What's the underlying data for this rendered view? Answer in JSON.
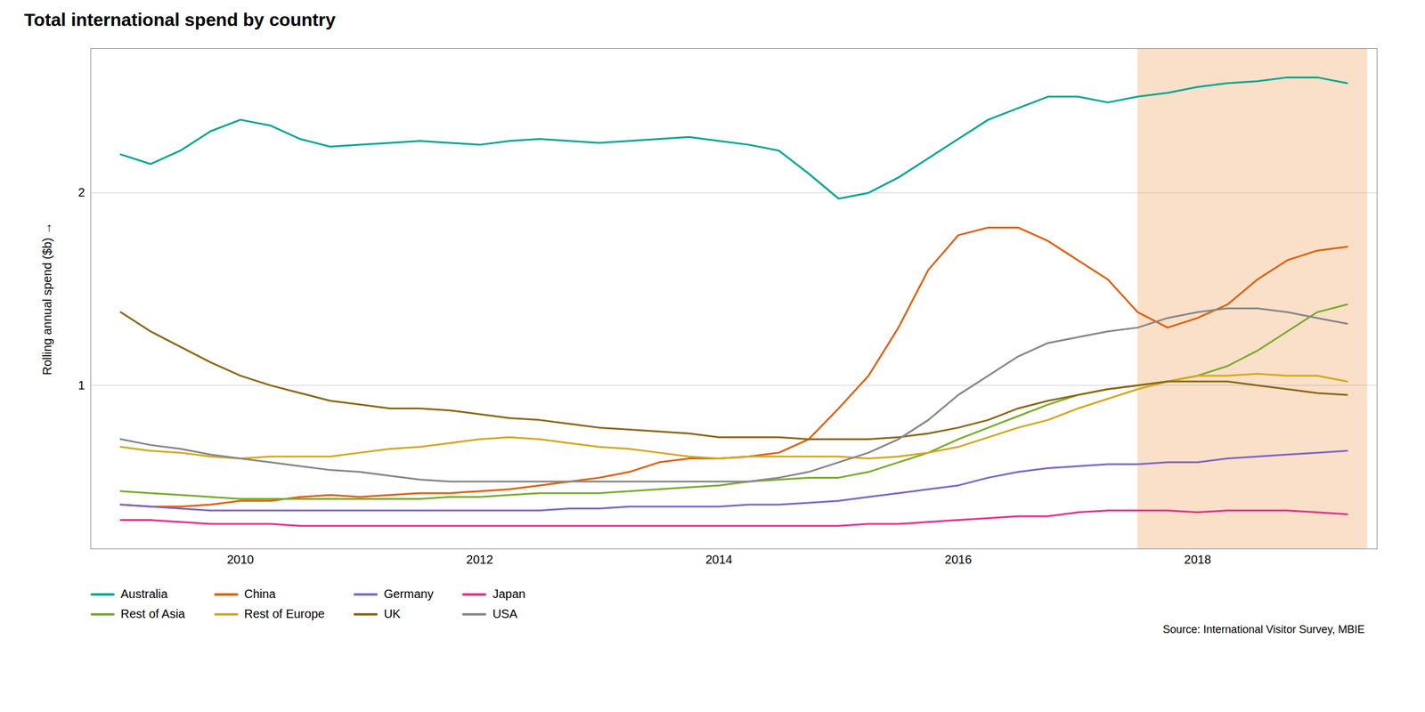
{
  "chart_data": {
    "type": "line",
    "title": "Total international spend by country",
    "ylabel": "Rolling annual spend ($b)",
    "annotations": [
      "Source: International Visitor Survey, MBIE"
    ],
    "highlight_span": [
      2017.5,
      2019.42
    ],
    "highlight_color": "#FAE0C8",
    "xlim": [
      2008.75,
      2019.5
    ],
    "ylim": [
      0.15,
      2.75
    ],
    "xticks": [
      2010,
      2012,
      2014,
      2016,
      2018
    ],
    "yticks": [
      1,
      2
    ],
    "grid": true,
    "legend": "bottom",
    "x": [
      2009.0,
      2009.25,
      2009.5,
      2009.75,
      2010.0,
      2010.25,
      2010.5,
      2010.75,
      2011.0,
      2011.25,
      2011.5,
      2011.75,
      2012.0,
      2012.25,
      2012.5,
      2012.75,
      2013.0,
      2013.25,
      2013.5,
      2013.75,
      2014.0,
      2014.25,
      2014.5,
      2014.75,
      2015.0,
      2015.25,
      2015.5,
      2015.75,
      2016.0,
      2016.25,
      2016.5,
      2016.75,
      2017.0,
      2017.25,
      2017.5,
      2017.75,
      2018.0,
      2018.25,
      2018.5,
      2018.75,
      2019.0,
      2019.25
    ],
    "series": [
      {
        "name": "Australia",
        "color": "#00A693",
        "values": [
          2.2,
          2.15,
          2.22,
          2.32,
          2.38,
          2.35,
          2.28,
          2.24,
          2.25,
          2.26,
          2.27,
          2.26,
          2.25,
          2.27,
          2.28,
          2.27,
          2.26,
          2.27,
          2.28,
          2.29,
          2.27,
          2.25,
          2.22,
          2.1,
          1.97,
          2.0,
          2.08,
          2.18,
          2.28,
          2.38,
          2.44,
          2.5,
          2.5,
          2.47,
          2.5,
          2.52,
          2.55,
          2.57,
          2.58,
          2.6,
          2.6,
          2.57
        ]
      },
      {
        "name": "China",
        "color": "#E06010",
        "values": [
          0.38,
          0.37,
          0.37,
          0.38,
          0.4,
          0.4,
          0.42,
          0.43,
          0.42,
          0.43,
          0.44,
          0.44,
          0.45,
          0.46,
          0.48,
          0.5,
          0.52,
          0.55,
          0.6,
          0.62,
          0.62,
          0.63,
          0.65,
          0.72,
          0.88,
          1.05,
          1.3,
          1.6,
          1.78,
          1.82,
          1.82,
          1.75,
          1.65,
          1.55,
          1.38,
          1.3,
          1.35,
          1.42,
          1.55,
          1.65,
          1.7,
          1.72
        ]
      },
      {
        "name": "Germany",
        "color": "#7B68C8",
        "values": [
          0.38,
          0.37,
          0.36,
          0.35,
          0.35,
          0.35,
          0.35,
          0.35,
          0.35,
          0.35,
          0.35,
          0.35,
          0.35,
          0.35,
          0.35,
          0.36,
          0.36,
          0.37,
          0.37,
          0.37,
          0.37,
          0.38,
          0.38,
          0.39,
          0.4,
          0.42,
          0.44,
          0.46,
          0.48,
          0.52,
          0.55,
          0.57,
          0.58,
          0.59,
          0.59,
          0.6,
          0.6,
          0.62,
          0.63,
          0.64,
          0.65,
          0.66
        ]
      },
      {
        "name": "Japan",
        "color": "#E8308A",
        "values": [
          0.3,
          0.3,
          0.29,
          0.28,
          0.28,
          0.28,
          0.27,
          0.27,
          0.27,
          0.27,
          0.27,
          0.27,
          0.27,
          0.27,
          0.27,
          0.27,
          0.27,
          0.27,
          0.27,
          0.27,
          0.27,
          0.27,
          0.27,
          0.27,
          0.27,
          0.28,
          0.28,
          0.29,
          0.3,
          0.31,
          0.32,
          0.32,
          0.34,
          0.35,
          0.35,
          0.35,
          0.34,
          0.35,
          0.35,
          0.35,
          0.34,
          0.33
        ]
      },
      {
        "name": "Rest of Asia",
        "color": "#79AC2C",
        "values": [
          0.45,
          0.44,
          0.43,
          0.42,
          0.41,
          0.41,
          0.41,
          0.41,
          0.41,
          0.41,
          0.41,
          0.42,
          0.42,
          0.43,
          0.44,
          0.44,
          0.44,
          0.45,
          0.46,
          0.47,
          0.48,
          0.5,
          0.51,
          0.52,
          0.52,
          0.55,
          0.6,
          0.65,
          0.72,
          0.78,
          0.84,
          0.9,
          0.95,
          0.98,
          1.0,
          1.02,
          1.05,
          1.1,
          1.18,
          1.28,
          1.38,
          1.42
        ]
      },
      {
        "name": "Rest of Europe",
        "color": "#D4A820",
        "values": [
          0.68,
          0.66,
          0.65,
          0.63,
          0.62,
          0.63,
          0.63,
          0.63,
          0.65,
          0.67,
          0.68,
          0.7,
          0.72,
          0.73,
          0.72,
          0.7,
          0.68,
          0.67,
          0.65,
          0.63,
          0.62,
          0.63,
          0.63,
          0.63,
          0.63,
          0.62,
          0.63,
          0.65,
          0.68,
          0.73,
          0.78,
          0.82,
          0.88,
          0.93,
          0.98,
          1.02,
          1.05,
          1.05,
          1.06,
          1.05,
          1.05,
          1.02
        ]
      },
      {
        "name": "UK",
        "color": "#8B6914",
        "values": [
          1.38,
          1.28,
          1.2,
          1.12,
          1.05,
          1.0,
          0.96,
          0.92,
          0.9,
          0.88,
          0.88,
          0.87,
          0.85,
          0.83,
          0.82,
          0.8,
          0.78,
          0.77,
          0.76,
          0.75,
          0.73,
          0.73,
          0.73,
          0.72,
          0.72,
          0.72,
          0.73,
          0.75,
          0.78,
          0.82,
          0.88,
          0.92,
          0.95,
          0.98,
          1.0,
          1.02,
          1.02,
          1.02,
          1.0,
          0.98,
          0.96,
          0.95
        ]
      },
      {
        "name": "USA",
        "color": "#888888",
        "values": [
          0.72,
          0.69,
          0.67,
          0.64,
          0.62,
          0.6,
          0.58,
          0.56,
          0.55,
          0.53,
          0.51,
          0.5,
          0.5,
          0.5,
          0.5,
          0.5,
          0.5,
          0.5,
          0.5,
          0.5,
          0.5,
          0.5,
          0.52,
          0.55,
          0.6,
          0.65,
          0.72,
          0.82,
          0.95,
          1.05,
          1.15,
          1.22,
          1.25,
          1.28,
          1.3,
          1.35,
          1.38,
          1.4,
          1.4,
          1.38,
          1.35,
          1.32
        ]
      }
    ]
  }
}
